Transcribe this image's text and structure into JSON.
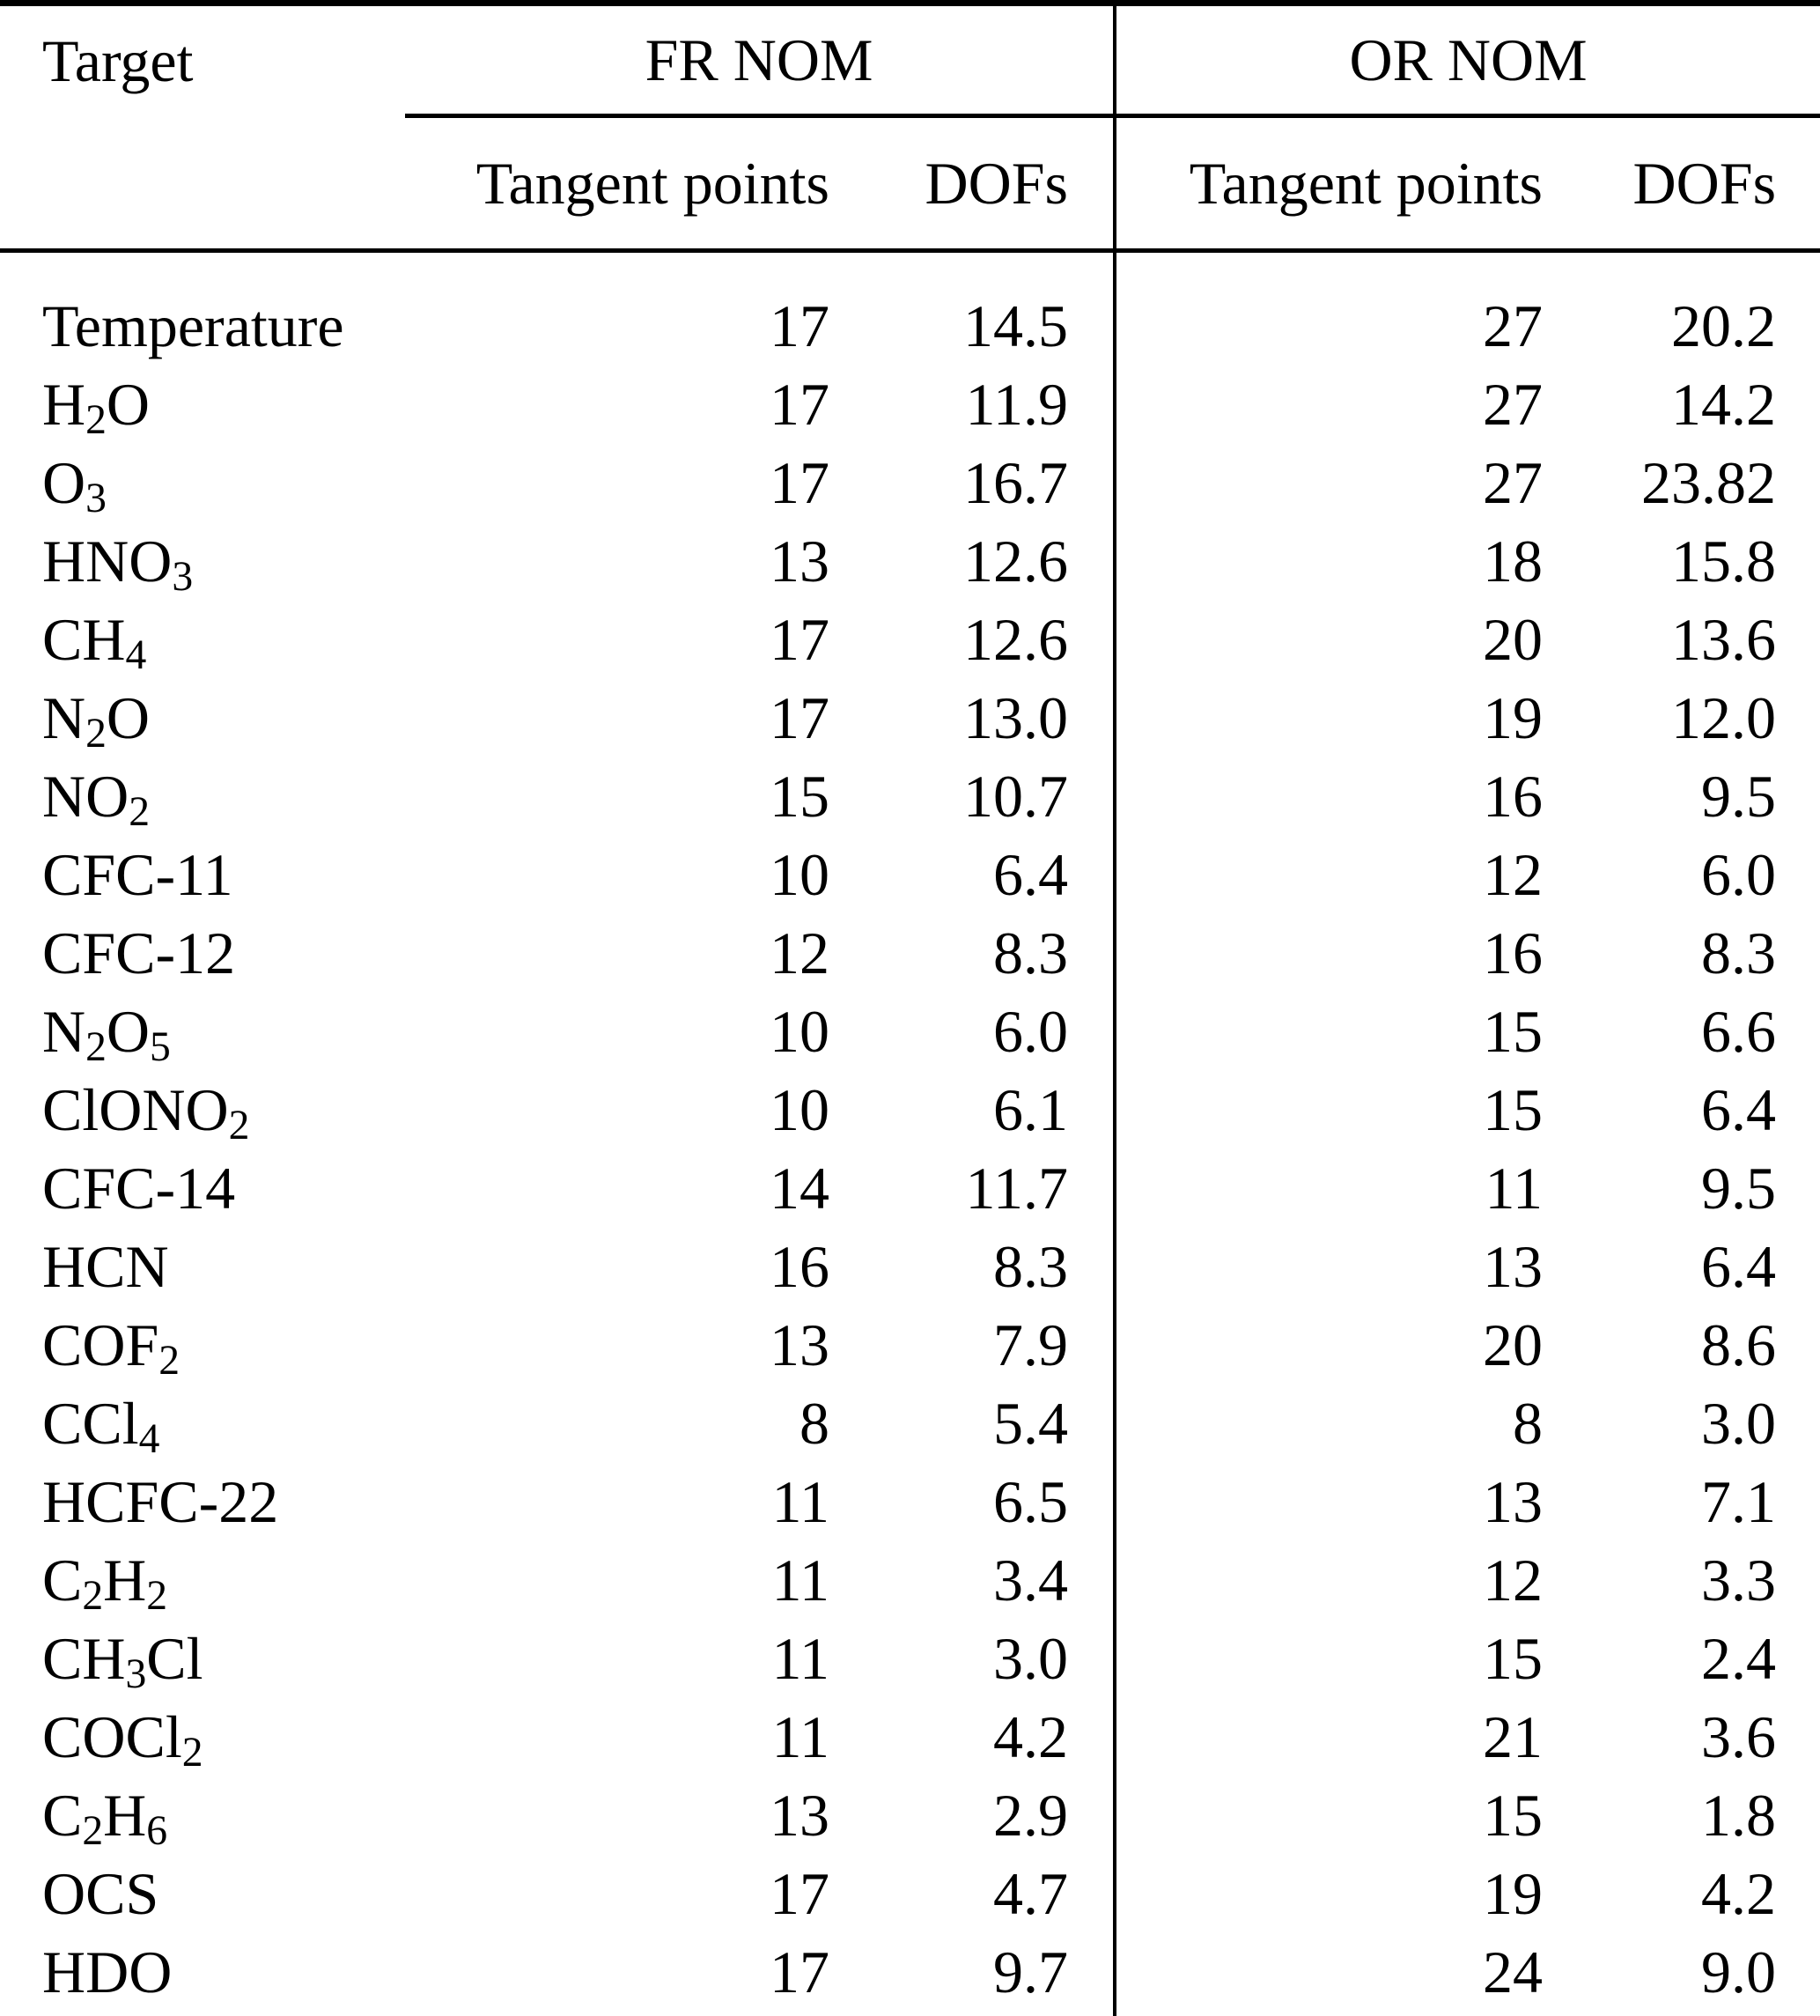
{
  "page": {
    "background": "#ffffff",
    "text_color": "#000000",
    "rule_color": "#000000"
  },
  "table": {
    "header": {
      "target_label": "Target",
      "groups": [
        {
          "label": "FR NOM"
        },
        {
          "label": "OR NOM"
        }
      ],
      "sub_headers": [
        "Tangent points",
        "DOFs",
        "Tangent points",
        "DOFs"
      ]
    },
    "rows": [
      {
        "target": "Temperature",
        "fr_tangent_points": "17",
        "fr_dofs": "14.5",
        "or_tangent_points": "27",
        "or_dofs": "20.2"
      },
      {
        "target": "H₂O",
        "fr_tangent_points": "17",
        "fr_dofs": "11.9",
        "or_tangent_points": "27",
        "or_dofs": "14.2"
      },
      {
        "target": "O₃",
        "fr_tangent_points": "17",
        "fr_dofs": "16.7",
        "or_tangent_points": "27",
        "or_dofs": "23.82"
      },
      {
        "target": "HNO₃",
        "fr_tangent_points": "13",
        "fr_dofs": "12.6",
        "or_tangent_points": "18",
        "or_dofs": "15.8"
      },
      {
        "target": "CH₄",
        "fr_tangent_points": "17",
        "fr_dofs": "12.6",
        "or_tangent_points": "20",
        "or_dofs": "13.6"
      },
      {
        "target": "N₂O",
        "fr_tangent_points": "17",
        "fr_dofs": "13.0",
        "or_tangent_points": "19",
        "or_dofs": "12.0"
      },
      {
        "target": "NO₂",
        "fr_tangent_points": "15",
        "fr_dofs": "10.7",
        "or_tangent_points": "16",
        "or_dofs": "9.5"
      },
      {
        "target": "CFC-11",
        "fr_tangent_points": "10",
        "fr_dofs": "6.4",
        "or_tangent_points": "12",
        "or_dofs": "6.0"
      },
      {
        "target": "CFC-12",
        "fr_tangent_points": "12",
        "fr_dofs": "8.3",
        "or_tangent_points": "16",
        "or_dofs": "8.3"
      },
      {
        "target": "N₂O₅",
        "fr_tangent_points": "10",
        "fr_dofs": "6.0",
        "or_tangent_points": "15",
        "or_dofs": "6.6"
      },
      {
        "target": "ClONO₂",
        "fr_tangent_points": "10",
        "fr_dofs": "6.1",
        "or_tangent_points": "15",
        "or_dofs": "6.4"
      },
      {
        "target": "CFC-14",
        "fr_tangent_points": "14",
        "fr_dofs": "11.7",
        "or_tangent_points": "11",
        "or_dofs": "9.5"
      },
      {
        "target": "HCN",
        "fr_tangent_points": "16",
        "fr_dofs": "8.3",
        "or_tangent_points": "13",
        "or_dofs": "6.4"
      },
      {
        "target": "COF₂",
        "fr_tangent_points": "13",
        "fr_dofs": "7.9",
        "or_tangent_points": "20",
        "or_dofs": "8.6"
      },
      {
        "target": "CCl₄",
        "fr_tangent_points": "8",
        "fr_dofs": "5.4",
        "or_tangent_points": "8",
        "or_dofs": "3.0"
      },
      {
        "target": "HCFC-22",
        "fr_tangent_points": "11",
        "fr_dofs": "6.5",
        "or_tangent_points": "13",
        "or_dofs": "7.1"
      },
      {
        "target": "C₂H₂",
        "fr_tangent_points": "11",
        "fr_dofs": "3.4",
        "or_tangent_points": "12",
        "or_dofs": "3.3"
      },
      {
        "target": "CH₃Cl",
        "fr_tangent_points": "11",
        "fr_dofs": "3.0",
        "or_tangent_points": "15",
        "or_dofs": "2.4"
      },
      {
        "target": "COCl₂",
        "fr_tangent_points": "11",
        "fr_dofs": "4.2",
        "or_tangent_points": "21",
        "or_dofs": "3.6"
      },
      {
        "target": "C₂H₆",
        "fr_tangent_points": "13",
        "fr_dofs": "2.9",
        "or_tangent_points": "15",
        "or_dofs": "1.8"
      },
      {
        "target": "OCS",
        "fr_tangent_points": "17",
        "fr_dofs": "4.7",
        "or_tangent_points": "19",
        "or_dofs": "4.2"
      },
      {
        "target": "HDO",
        "fr_tangent_points": "17",
        "fr_dofs": "9.7",
        "or_tangent_points": "24",
        "or_dofs": "9.0"
      }
    ]
  }
}
